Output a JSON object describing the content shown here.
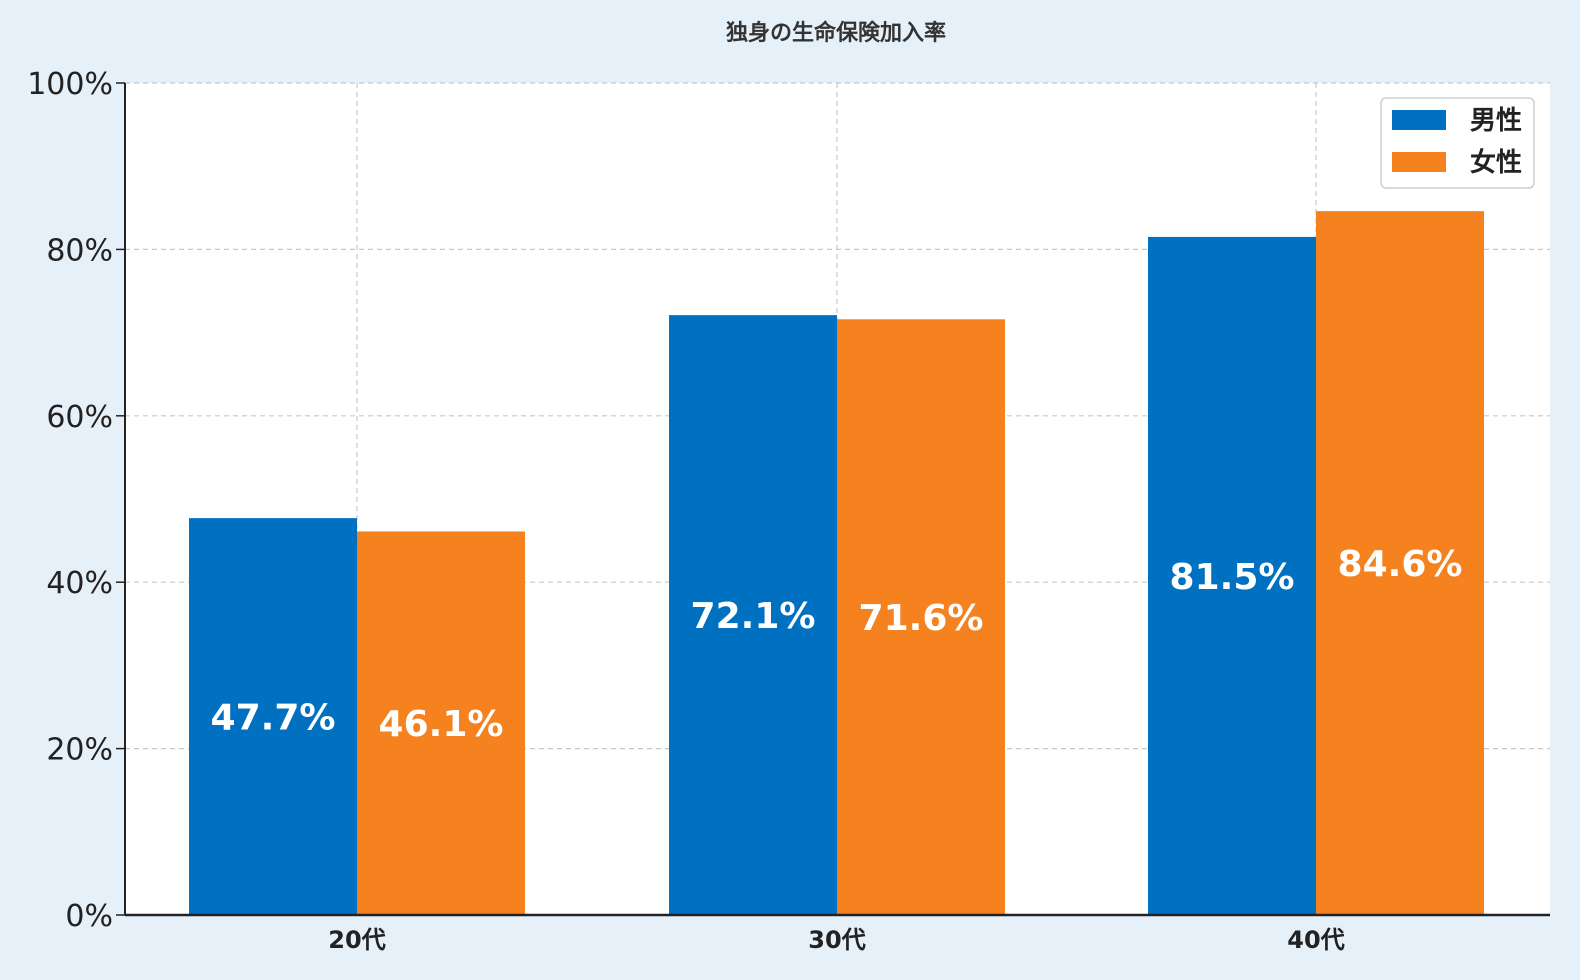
{
  "chart_data": {
    "type": "bar",
    "title": "独身の生命保険加入率",
    "xlabel": "",
    "ylabel": "",
    "categories": [
      "20代",
      "30代",
      "40代"
    ],
    "series": [
      {
        "name": "男性",
        "values": [
          47.7,
          72.1,
          81.5
        ],
        "labels": [
          "47.7%",
          "72.1%",
          "81.5%"
        ],
        "color": "#0070c0"
      },
      {
        "name": "女性",
        "values": [
          46.1,
          71.6,
          84.6
        ],
        "labels": [
          "46.1%",
          "71.6%",
          "84.6%"
        ],
        "color": "#f5821f"
      }
    ],
    "ylim": [
      0,
      100
    ],
    "yticks": [
      "0%",
      "20%",
      "40%",
      "60%",
      "80%",
      "100%"
    ],
    "grid": true,
    "legend": "top-right",
    "label_position": "middle"
  }
}
